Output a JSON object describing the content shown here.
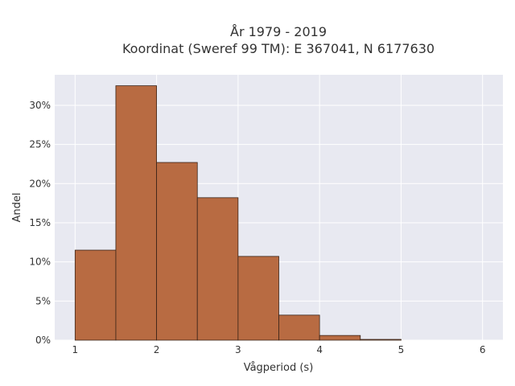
{
  "chart_data": {
    "type": "bar",
    "title_line1": "År 1979 - 2019",
    "title_line2": "Koordinat (Sweref 99 TM): E 367041, N 6177630",
    "xlabel": "Vågperiod (s)",
    "ylabel": "Andel",
    "xlim": [
      0.75,
      6.25
    ],
    "ylim": [
      0,
      0.339
    ],
    "x_ticks": [
      1,
      2,
      3,
      4,
      5,
      6
    ],
    "y_ticks": [
      0,
      0.05,
      0.1,
      0.15,
      0.2,
      0.25,
      0.3
    ],
    "y_tick_labels": [
      "0%",
      "5%",
      "10%",
      "15%",
      "20%",
      "25%",
      "30%"
    ],
    "bins": [
      {
        "x0": 1.0,
        "x1": 1.5,
        "value": 0.115
      },
      {
        "x0": 1.5,
        "x1": 2.0,
        "value": 0.325
      },
      {
        "x0": 2.0,
        "x1": 2.5,
        "value": 0.227
      },
      {
        "x0": 2.5,
        "x1": 3.0,
        "value": 0.182
      },
      {
        "x0": 3.0,
        "x1": 3.5,
        "value": 0.107
      },
      {
        "x0": 3.5,
        "x1": 4.0,
        "value": 0.032
      },
      {
        "x0": 4.0,
        "x1": 4.5,
        "value": 0.006
      },
      {
        "x0": 4.5,
        "x1": 5.0,
        "value": 0.001
      }
    ],
    "grid": true,
    "colors": {
      "bar_fill": "#b86b42",
      "bar_edge": "#3a2418",
      "plot_bg": "#e8e9f1",
      "grid": "#ffffff"
    }
  }
}
